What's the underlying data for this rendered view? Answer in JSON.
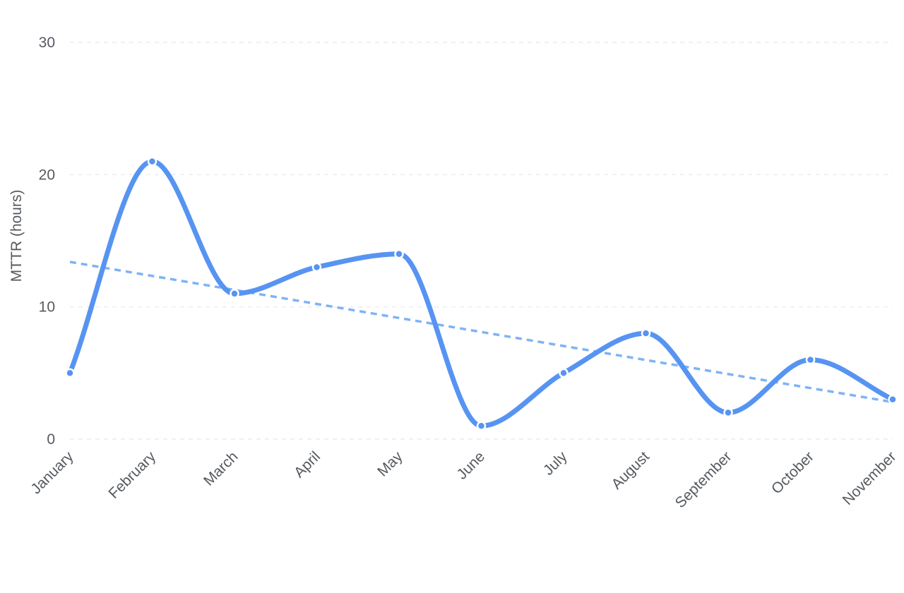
{
  "chart_data": {
    "type": "line",
    "title": "",
    "xlabel": "",
    "ylabel": "MTTR (hours)",
    "categories": [
      "January",
      "February",
      "March",
      "April",
      "May",
      "June",
      "July",
      "August",
      "September",
      "October",
      "November"
    ],
    "series": [
      {
        "values": [
          5,
          21,
          11,
          13,
          14,
          1,
          5,
          8,
          2,
          6,
          3
        ],
        "color": "#5794f2",
        "smooth": true,
        "markers": true
      }
    ],
    "trendline": {
      "type": "linear",
      "start": 13.4,
      "end": 2.8,
      "color": "#7eb3f5",
      "dashed": true
    },
    "yticks": [
      0,
      10,
      20,
      30
    ],
    "ylim": [
      0,
      30
    ],
    "grid": true,
    "legend": "none"
  }
}
